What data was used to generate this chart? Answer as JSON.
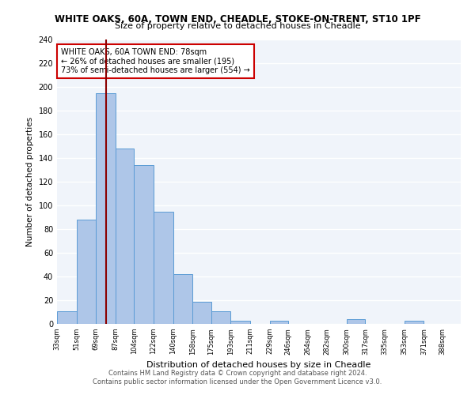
{
  "title": "WHITE OAKS, 60A, TOWN END, CHEADLE, STOKE-ON-TRENT, ST10 1PF",
  "subtitle": "Size of property relative to detached houses in Cheadle",
  "xlabel": "Distribution of detached houses by size in Cheadle",
  "ylabel": "Number of detached properties",
  "footer_line1": "Contains HM Land Registry data © Crown copyright and database right 2024.",
  "footer_line2": "Contains public sector information licensed under the Open Government Licence v3.0.",
  "bin_labels": [
    "33sqm",
    "51sqm",
    "69sqm",
    "87sqm",
    "104sqm",
    "122sqm",
    "140sqm",
    "158sqm",
    "175sqm",
    "193sqm",
    "211sqm",
    "229sqm",
    "246sqm",
    "264sqm",
    "282sqm",
    "300sqm",
    "317sqm",
    "335sqm",
    "353sqm",
    "371sqm",
    "388sqm"
  ],
  "bin_edges": [
    33,
    51,
    69,
    87,
    104,
    122,
    140,
    158,
    175,
    193,
    211,
    229,
    246,
    264,
    282,
    300,
    317,
    335,
    353,
    371,
    388
  ],
  "bar_heights": [
    11,
    88,
    195,
    148,
    134,
    95,
    42,
    19,
    11,
    3,
    0,
    3,
    0,
    0,
    0,
    4,
    0,
    0,
    3,
    0,
    0
  ],
  "bar_color": "#aec6e8",
  "bar_edge_color": "#5b9bd5",
  "bar_widths": [
    18,
    18,
    18,
    17,
    18,
    18,
    18,
    17,
    18,
    18,
    18,
    17,
    18,
    18,
    18,
    17,
    18,
    18,
    18,
    17,
    17
  ],
  "vline_x": 78,
  "vline_color": "#8b0000",
  "annotation_title": "WHITE OAKS, 60A TOWN END: 78sqm",
  "annotation_line1": "← 26% of detached houses are smaller (195)",
  "annotation_line2": "73% of semi-detached houses are larger (554) →",
  "annotation_box_edge": "#cc0000",
  "ylim": [
    0,
    240
  ],
  "yticks": [
    0,
    20,
    40,
    60,
    80,
    100,
    120,
    140,
    160,
    180,
    200,
    220,
    240
  ],
  "bg_color": "#f0f4fa",
  "plot_bg_color": "#f0f4fa",
  "grid_color": "#ffffff"
}
